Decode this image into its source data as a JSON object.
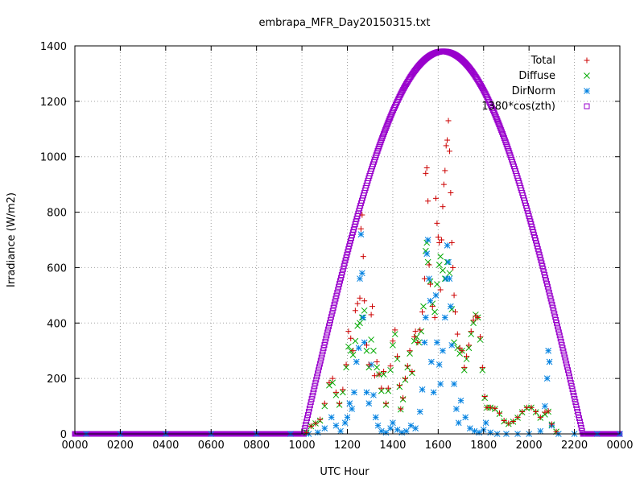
{
  "chart_data": {
    "type": "scatter",
    "title": "embrapa_MFR_Day20150315.txt",
    "xlabel": "UTC Hour",
    "ylabel": "Irradiance (W/m2)",
    "xlim": [
      0,
      24
    ],
    "ylim": [
      0,
      1400
    ],
    "x_ticks": [
      0,
      2,
      4,
      6,
      8,
      10,
      12,
      14,
      16,
      18,
      20,
      22,
      24
    ],
    "x_tick_labels": [
      "0000",
      "0200",
      "0400",
      "0600",
      "0800",
      "1000",
      "1200",
      "1400",
      "1600",
      "1800",
      "2000",
      "2200",
      "0000"
    ],
    "y_ticks": [
      0,
      200,
      400,
      600,
      800,
      1000,
      1200,
      1400
    ],
    "y_tick_labels": [
      "0",
      "200",
      "400",
      "600",
      "800",
      "1000",
      "1200",
      "1400"
    ],
    "grid": true,
    "legend_position": "top-right",
    "series": [
      {
        "name": "Total",
        "marker": "plus",
        "color": "#cc0000",
        "points": [
          [
            10.2,
            5
          ],
          [
            10.4,
            28
          ],
          [
            10.6,
            38
          ],
          [
            10.8,
            52
          ],
          [
            11.0,
            110
          ],
          [
            11.2,
            185
          ],
          [
            11.35,
            200
          ],
          [
            11.5,
            150
          ],
          [
            11.65,
            110
          ],
          [
            11.8,
            160
          ],
          [
            11.95,
            250
          ],
          [
            12.05,
            370
          ],
          [
            12.15,
            345
          ],
          [
            12.25,
            300
          ],
          [
            12.35,
            445
          ],
          [
            12.45,
            470
          ],
          [
            12.55,
            490
          ],
          [
            12.6,
            740
          ],
          [
            12.65,
            790
          ],
          [
            12.7,
            640
          ],
          [
            12.75,
            480
          ],
          [
            12.85,
            320
          ],
          [
            12.95,
            250
          ],
          [
            13.05,
            430
          ],
          [
            13.1,
            460
          ],
          [
            13.2,
            210
          ],
          [
            13.3,
            260
          ],
          [
            13.4,
            215
          ],
          [
            13.5,
            165
          ],
          [
            13.6,
            225
          ],
          [
            13.7,
            110
          ],
          [
            13.8,
            165
          ],
          [
            13.9,
            245
          ],
          [
            14.0,
            335
          ],
          [
            14.1,
            375
          ],
          [
            14.2,
            280
          ],
          [
            14.3,
            175
          ],
          [
            14.35,
            90
          ],
          [
            14.45,
            130
          ],
          [
            14.55,
            200
          ],
          [
            14.65,
            245
          ],
          [
            14.75,
            300
          ],
          [
            14.85,
            225
          ],
          [
            14.95,
            350
          ],
          [
            15.0,
            370
          ],
          [
            15.1,
            330
          ],
          [
            15.2,
            375
          ],
          [
            15.3,
            440
          ],
          [
            15.4,
            560
          ],
          [
            15.45,
            940
          ],
          [
            15.5,
            960
          ],
          [
            15.55,
            840
          ],
          [
            15.6,
            610
          ],
          [
            15.65,
            540
          ],
          [
            15.75,
            460
          ],
          [
            15.85,
            420
          ],
          [
            15.9,
            850
          ],
          [
            15.95,
            760
          ],
          [
            16.0,
            710
          ],
          [
            16.05,
            690
          ],
          [
            16.1,
            520
          ],
          [
            16.15,
            700
          ],
          [
            16.2,
            820
          ],
          [
            16.25,
            900
          ],
          [
            16.3,
            950
          ],
          [
            16.35,
            1040
          ],
          [
            16.4,
            1060
          ],
          [
            16.45,
            1130
          ],
          [
            16.5,
            1020
          ],
          [
            16.55,
            870
          ],
          [
            16.6,
            690
          ],
          [
            16.65,
            600
          ],
          [
            16.7,
            500
          ],
          [
            16.75,
            440
          ],
          [
            16.85,
            360
          ],
          [
            16.95,
            310
          ],
          [
            17.05,
            300
          ],
          [
            17.15,
            240
          ],
          [
            17.25,
            280
          ],
          [
            17.35,
            320
          ],
          [
            17.45,
            370
          ],
          [
            17.55,
            410
          ],
          [
            17.65,
            425
          ],
          [
            17.75,
            420
          ],
          [
            17.85,
            350
          ],
          [
            17.95,
            240
          ],
          [
            18.05,
            135
          ],
          [
            18.15,
            95
          ],
          [
            18.3,
            95
          ],
          [
            18.5,
            92
          ],
          [
            18.7,
            75
          ],
          [
            18.9,
            48
          ],
          [
            19.1,
            38
          ],
          [
            19.3,
            45
          ],
          [
            19.5,
            60
          ],
          [
            19.7,
            80
          ],
          [
            19.9,
            95
          ],
          [
            20.1,
            95
          ],
          [
            20.3,
            80
          ],
          [
            20.5,
            60
          ],
          [
            20.7,
            78
          ],
          [
            20.85,
            82
          ],
          [
            21.0,
            35
          ],
          [
            21.2,
            8
          ]
        ]
      },
      {
        "name": "Diffuse",
        "marker": "cross",
        "color": "#00aa00",
        "points": [
          [
            10.2,
            5
          ],
          [
            10.4,
            28
          ],
          [
            10.6,
            38
          ],
          [
            10.8,
            48
          ],
          [
            11.0,
            100
          ],
          [
            11.2,
            175
          ],
          [
            11.35,
            185
          ],
          [
            11.5,
            140
          ],
          [
            11.65,
            105
          ],
          [
            11.8,
            150
          ],
          [
            11.95,
            240
          ],
          [
            12.05,
            315
          ],
          [
            12.15,
            300
          ],
          [
            12.25,
            285
          ],
          [
            12.35,
            335
          ],
          [
            12.45,
            390
          ],
          [
            12.55,
            400
          ],
          [
            12.65,
            420
          ],
          [
            12.75,
            445
          ],
          [
            12.85,
            300
          ],
          [
            12.95,
            240
          ],
          [
            13.05,
            340
          ],
          [
            13.15,
            300
          ],
          [
            13.3,
            240
          ],
          [
            13.4,
            215
          ],
          [
            13.5,
            155
          ],
          [
            13.6,
            215
          ],
          [
            13.7,
            105
          ],
          [
            13.8,
            155
          ],
          [
            13.9,
            230
          ],
          [
            14.0,
            320
          ],
          [
            14.1,
            360
          ],
          [
            14.2,
            270
          ],
          [
            14.3,
            170
          ],
          [
            14.35,
            88
          ],
          [
            14.45,
            125
          ],
          [
            14.55,
            195
          ],
          [
            14.65,
            240
          ],
          [
            14.75,
            290
          ],
          [
            14.85,
            220
          ],
          [
            14.95,
            335
          ],
          [
            15.05,
            350
          ],
          [
            15.15,
            330
          ],
          [
            15.25,
            370
          ],
          [
            15.35,
            460
          ],
          [
            15.45,
            660
          ],
          [
            15.5,
            690
          ],
          [
            15.55,
            620
          ],
          [
            15.65,
            550
          ],
          [
            15.75,
            470
          ],
          [
            15.85,
            440
          ],
          [
            15.95,
            540
          ],
          [
            16.05,
            610
          ],
          [
            16.1,
            640
          ],
          [
            16.2,
            590
          ],
          [
            16.3,
            560
          ],
          [
            16.4,
            620
          ],
          [
            16.5,
            580
          ],
          [
            16.6,
            450
          ],
          [
            16.7,
            330
          ],
          [
            16.85,
            310
          ],
          [
            16.95,
            290
          ],
          [
            17.05,
            300
          ],
          [
            17.15,
            230
          ],
          [
            17.25,
            270
          ],
          [
            17.35,
            310
          ],
          [
            17.45,
            360
          ],
          [
            17.55,
            400
          ],
          [
            17.65,
            430
          ],
          [
            17.75,
            420
          ],
          [
            17.85,
            340
          ],
          [
            17.95,
            230
          ],
          [
            18.05,
            130
          ],
          [
            18.15,
            95
          ],
          [
            18.3,
            95
          ],
          [
            18.5,
            90
          ],
          [
            18.7,
            72
          ],
          [
            18.9,
            45
          ],
          [
            19.1,
            36
          ],
          [
            19.3,
            44
          ],
          [
            19.5,
            58
          ],
          [
            19.7,
            78
          ],
          [
            19.9,
            93
          ],
          [
            20.1,
            95
          ],
          [
            20.3,
            78
          ],
          [
            20.5,
            58
          ],
          [
            20.7,
            70
          ],
          [
            20.85,
            80
          ],
          [
            21.0,
            34
          ],
          [
            21.2,
            8
          ]
        ]
      },
      {
        "name": "DirNorm",
        "marker": "star",
        "color": "#0080e0",
        "points": [
          [
            0.5,
            0
          ],
          [
            2,
            0
          ],
          [
            4,
            0
          ],
          [
            6,
            0
          ],
          [
            8,
            0
          ],
          [
            9.5,
            0
          ],
          [
            10.3,
            0
          ],
          [
            10.7,
            5
          ],
          [
            11.0,
            20
          ],
          [
            11.3,
            60
          ],
          [
            11.5,
            30
          ],
          [
            11.7,
            10
          ],
          [
            11.9,
            40
          ],
          [
            12.0,
            60
          ],
          [
            12.1,
            110
          ],
          [
            12.2,
            90
          ],
          [
            12.3,
            150
          ],
          [
            12.4,
            260
          ],
          [
            12.5,
            310
          ],
          [
            12.55,
            560
          ],
          [
            12.6,
            720
          ],
          [
            12.65,
            580
          ],
          [
            12.7,
            420
          ],
          [
            12.75,
            330
          ],
          [
            12.85,
            150
          ],
          [
            12.95,
            110
          ],
          [
            13.05,
            250
          ],
          [
            13.15,
            140
          ],
          [
            13.25,
            60
          ],
          [
            13.35,
            30
          ],
          [
            13.5,
            10
          ],
          [
            13.7,
            5
          ],
          [
            13.9,
            20
          ],
          [
            14.0,
            40
          ],
          [
            14.2,
            15
          ],
          [
            14.4,
            5
          ],
          [
            14.6,
            10
          ],
          [
            14.8,
            30
          ],
          [
            15.0,
            20
          ],
          [
            15.2,
            80
          ],
          [
            15.3,
            160
          ],
          [
            15.4,
            330
          ],
          [
            15.45,
            420
          ],
          [
            15.5,
            650
          ],
          [
            15.55,
            700
          ],
          [
            15.6,
            560
          ],
          [
            15.65,
            480
          ],
          [
            15.7,
            260
          ],
          [
            15.8,
            150
          ],
          [
            15.9,
            500
          ],
          [
            15.95,
            330
          ],
          [
            16.05,
            250
          ],
          [
            16.1,
            180
          ],
          [
            16.2,
            300
          ],
          [
            16.3,
            420
          ],
          [
            16.35,
            560
          ],
          [
            16.4,
            680
          ],
          [
            16.45,
            620
          ],
          [
            16.5,
            560
          ],
          [
            16.55,
            460
          ],
          [
            16.6,
            320
          ],
          [
            16.7,
            180
          ],
          [
            16.8,
            90
          ],
          [
            16.9,
            40
          ],
          [
            17.0,
            120
          ],
          [
            17.2,
            60
          ],
          [
            17.4,
            20
          ],
          [
            17.6,
            10
          ],
          [
            17.8,
            5
          ],
          [
            18.0,
            15
          ],
          [
            18.1,
            40
          ],
          [
            18.3,
            5
          ],
          [
            18.6,
            0
          ],
          [
            19.0,
            0
          ],
          [
            19.5,
            0
          ],
          [
            20.0,
            0
          ],
          [
            20.5,
            10
          ],
          [
            20.7,
            100
          ],
          [
            20.8,
            200
          ],
          [
            20.85,
            300
          ],
          [
            20.9,
            260
          ],
          [
            21.0,
            30
          ],
          [
            21.3,
            0
          ],
          [
            22,
            0
          ],
          [
            23,
            0
          ],
          [
            24,
            0
          ]
        ]
      },
      {
        "name": "1380*cos(zth)",
        "marker": "box",
        "color": "#9900cc",
        "formula": {
          "peak": 1380,
          "solar_noon": 16.22,
          "sunrise": 10.07,
          "sunset": 22.37
        }
      }
    ]
  }
}
